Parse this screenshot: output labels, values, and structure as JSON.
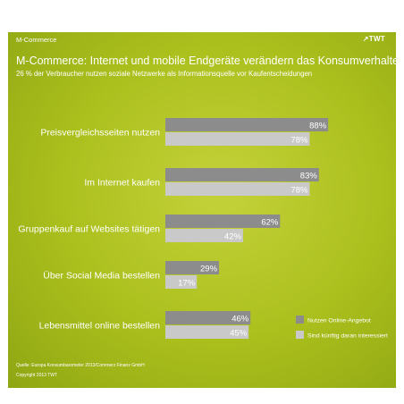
{
  "header": {
    "section_label": "M-Commerce",
    "logo_text": "↗TWT",
    "title": "M-Commerce: Internet und mobile Endgeräte verändern das Konsumverhalten",
    "subtitle": "26 % der Verbraucher nutzen soziale Netzwerke als Informationsquelle vor Kaufentscheidungen"
  },
  "footer": {
    "source": "Quelle: Europa Konsumbarometer 2013/Commerz Finanz GmbH",
    "copyright": "Copyright 2013 TWT"
  },
  "colors": {
    "series1": "#8c8c8c",
    "series2": "#c9c9c9",
    "background": "#aabf1c"
  },
  "chart_data": {
    "type": "bar",
    "orientation": "horizontal",
    "categories": [
      "Preisvergleichsseiten nutzen",
      "Im Internet kaufen",
      "Gruppenkauf auf Websites tätigen",
      "Über Social Media bestellen",
      "Lebensmittel online bestellen"
    ],
    "series": [
      {
        "name": "Nutzen Online-Angebot",
        "values": [
          88,
          83,
          62,
          29,
          46
        ],
        "labels": [
          "88%",
          "83%",
          "62%",
          "29%",
          "46%"
        ]
      },
      {
        "name": "Sind künftig daran interessiert",
        "values": [
          78,
          78,
          42,
          17,
          45
        ],
        "labels": [
          "78%",
          "78%",
          "42%",
          "17%",
          "45%"
        ]
      }
    ],
    "xlim": [
      0,
      100
    ],
    "grid": false,
    "legend_position": "bottom-right"
  }
}
